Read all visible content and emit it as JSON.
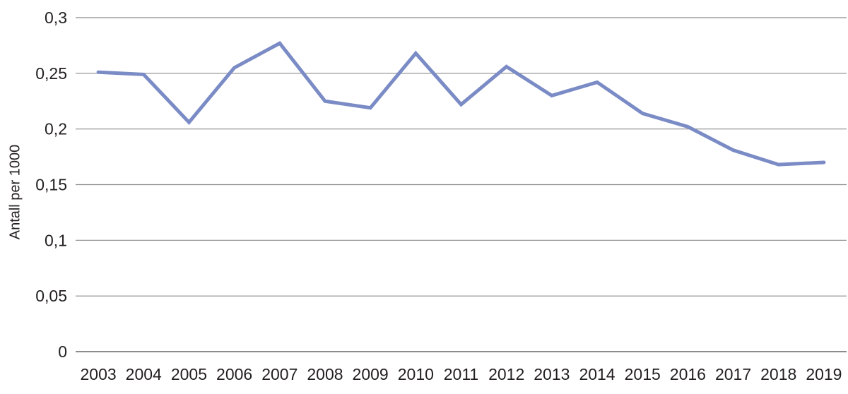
{
  "chart_data": {
    "type": "line",
    "title": "",
    "xlabel": "",
    "ylabel": "Antall per 1000",
    "categories": [
      "2003",
      "2004",
      "2005",
      "2006",
      "2007",
      "2008",
      "2009",
      "2010",
      "2011",
      "2012",
      "2013",
      "2014",
      "2015",
      "2016",
      "2017",
      "2018",
      "2019"
    ],
    "series": [
      {
        "name": "Antall per 1000",
        "values": [
          0.251,
          0.249,
          0.206,
          0.255,
          0.277,
          0.225,
          0.219,
          0.268,
          0.222,
          0.256,
          0.23,
          0.242,
          0.214,
          0.202,
          0.181,
          0.168,
          0.17
        ]
      }
    ],
    "ylim": [
      0,
      0.3
    ],
    "y_ticks": [
      0,
      0.05,
      0.1,
      0.15,
      0.2,
      0.25,
      0.3
    ],
    "y_tick_labels": [
      "0",
      "0,05",
      "0,1",
      "0,15",
      "0,2",
      "0,25",
      "0,3"
    ],
    "grid": true,
    "legend": false,
    "colors": {
      "line": "#7a8bc5",
      "gridline": "#8c8c8c",
      "baseline": "#8c8c8c",
      "text": "#231f20",
      "background": "#ffffff"
    }
  }
}
